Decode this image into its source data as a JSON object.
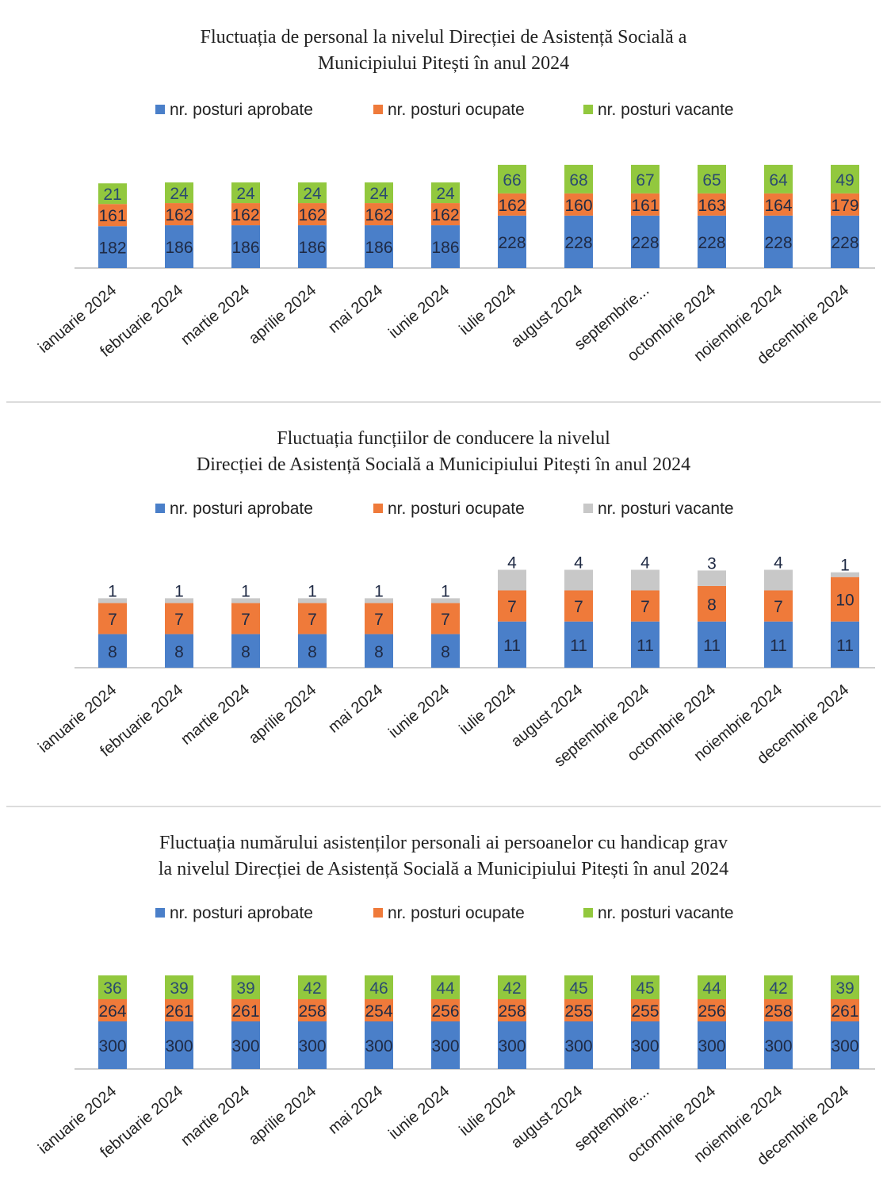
{
  "colors": {
    "aprobate": "#4a7fc9",
    "ocupate": "#ef7a3a",
    "vacante_green": "#92c83e",
    "vacante_gray": "#c8c8c8",
    "label_dark": "#1f2a44",
    "label_light_on_green": "#2a4a70",
    "axis": "#bdbdbd"
  },
  "chart_data": [
    {
      "type": "bar",
      "stacked": true,
      "title_lines": [
        "Fluctuația de personal la nivelul Direcției de Asistență Socială a",
        "Municipiului Pitești în anul 2024"
      ],
      "legend": [
        "nr. posturi aprobate",
        "nr. posturi ocupate",
        "nr. posturi vacante"
      ],
      "legend_position": "top",
      "categories": [
        "ianuarie 2024",
        "februarie 2024",
        "martie 2024",
        "aprilie 2024",
        "mai 2024",
        "iunie 2024",
        "iulie 2024",
        "august 2024",
        "septembrie...",
        "octombrie 2024",
        "noiembrie 2024",
        "decembrie 2024"
      ],
      "series": [
        {
          "name": "nr. posturi aprobate",
          "values": [
            182,
            186,
            186,
            186,
            186,
            186,
            228,
            228,
            228,
            228,
            228,
            228
          ]
        },
        {
          "name": "nr. posturi ocupate",
          "values": [
            161,
            162,
            162,
            162,
            162,
            162,
            162,
            160,
            161,
            163,
            164,
            179
          ]
        },
        {
          "name": "nr. posturi vacante",
          "values": [
            21,
            24,
            24,
            24,
            24,
            24,
            66,
            68,
            67,
            65,
            64,
            49
          ]
        }
      ],
      "vacante_color": "green",
      "grid": false
    },
    {
      "type": "bar",
      "stacked": true,
      "title_lines": [
        "Fluctuația funcțiilor de conducere   la nivelul",
        "Direcției de Asistență Socială a Municipiului Pitești în anul 2024"
      ],
      "legend": [
        "nr. posturi aprobate",
        "nr. posturi ocupate",
        "nr. posturi vacante"
      ],
      "legend_position": "top",
      "categories": [
        "ianuarie 2024",
        "februarie 2024",
        "martie 2024",
        "aprilie 2024",
        "mai 2024",
        "iunie 2024",
        "iulie 2024",
        "august 2024",
        "septembrie 2024",
        "octombrie 2024",
        "noiembrie 2024",
        "decembrie 2024"
      ],
      "series": [
        {
          "name": "nr. posturi aprobate",
          "values": [
            8,
            8,
            8,
            8,
            8,
            8,
            11,
            11,
            11,
            11,
            11,
            11
          ]
        },
        {
          "name": "nr. posturi ocupate",
          "values": [
            7,
            7,
            7,
            7,
            7,
            7,
            7,
            7,
            7,
            8,
            7,
            10
          ]
        },
        {
          "name": "nr. posturi vacante",
          "values": [
            1,
            1,
            1,
            1,
            1,
            1,
            4,
            4,
            4,
            3,
            4,
            1
          ]
        }
      ],
      "vacante_color": "gray",
      "grid": false
    },
    {
      "type": "bar",
      "stacked": true,
      "title_lines": [
        "Fluctuația numărului asistenților personali ai persoanelor cu handicap grav",
        "la nivelul Direcției de Asistență Socială a Municipiului Pitești în anul 2024"
      ],
      "legend": [
        "nr. posturi aprobate",
        "nr. posturi ocupate",
        "nr. posturi vacante"
      ],
      "legend_position": "top",
      "categories": [
        "ianuarie 2024",
        "februarie 2024",
        "martie 2024",
        "aprilie 2024",
        "mai 2024",
        "iunie 2024",
        "iulie 2024",
        "august 2024",
        "septembrie...",
        "octombrie 2024",
        "noiembrie 2024",
        "decembrie 2024"
      ],
      "series": [
        {
          "name": "nr. posturi aprobate",
          "values": [
            300,
            300,
            300,
            300,
            300,
            300,
            300,
            300,
            300,
            300,
            300,
            300
          ]
        },
        {
          "name": "nr. posturi ocupate",
          "values": [
            264,
            261,
            261,
            258,
            254,
            256,
            258,
            255,
            255,
            256,
            258,
            261
          ]
        },
        {
          "name": "nr. posturi vacante",
          "values": [
            36,
            39,
            39,
            42,
            46,
            44,
            42,
            45,
            45,
            44,
            42,
            39
          ]
        }
      ],
      "vacante_color": "green",
      "grid": false
    }
  ]
}
